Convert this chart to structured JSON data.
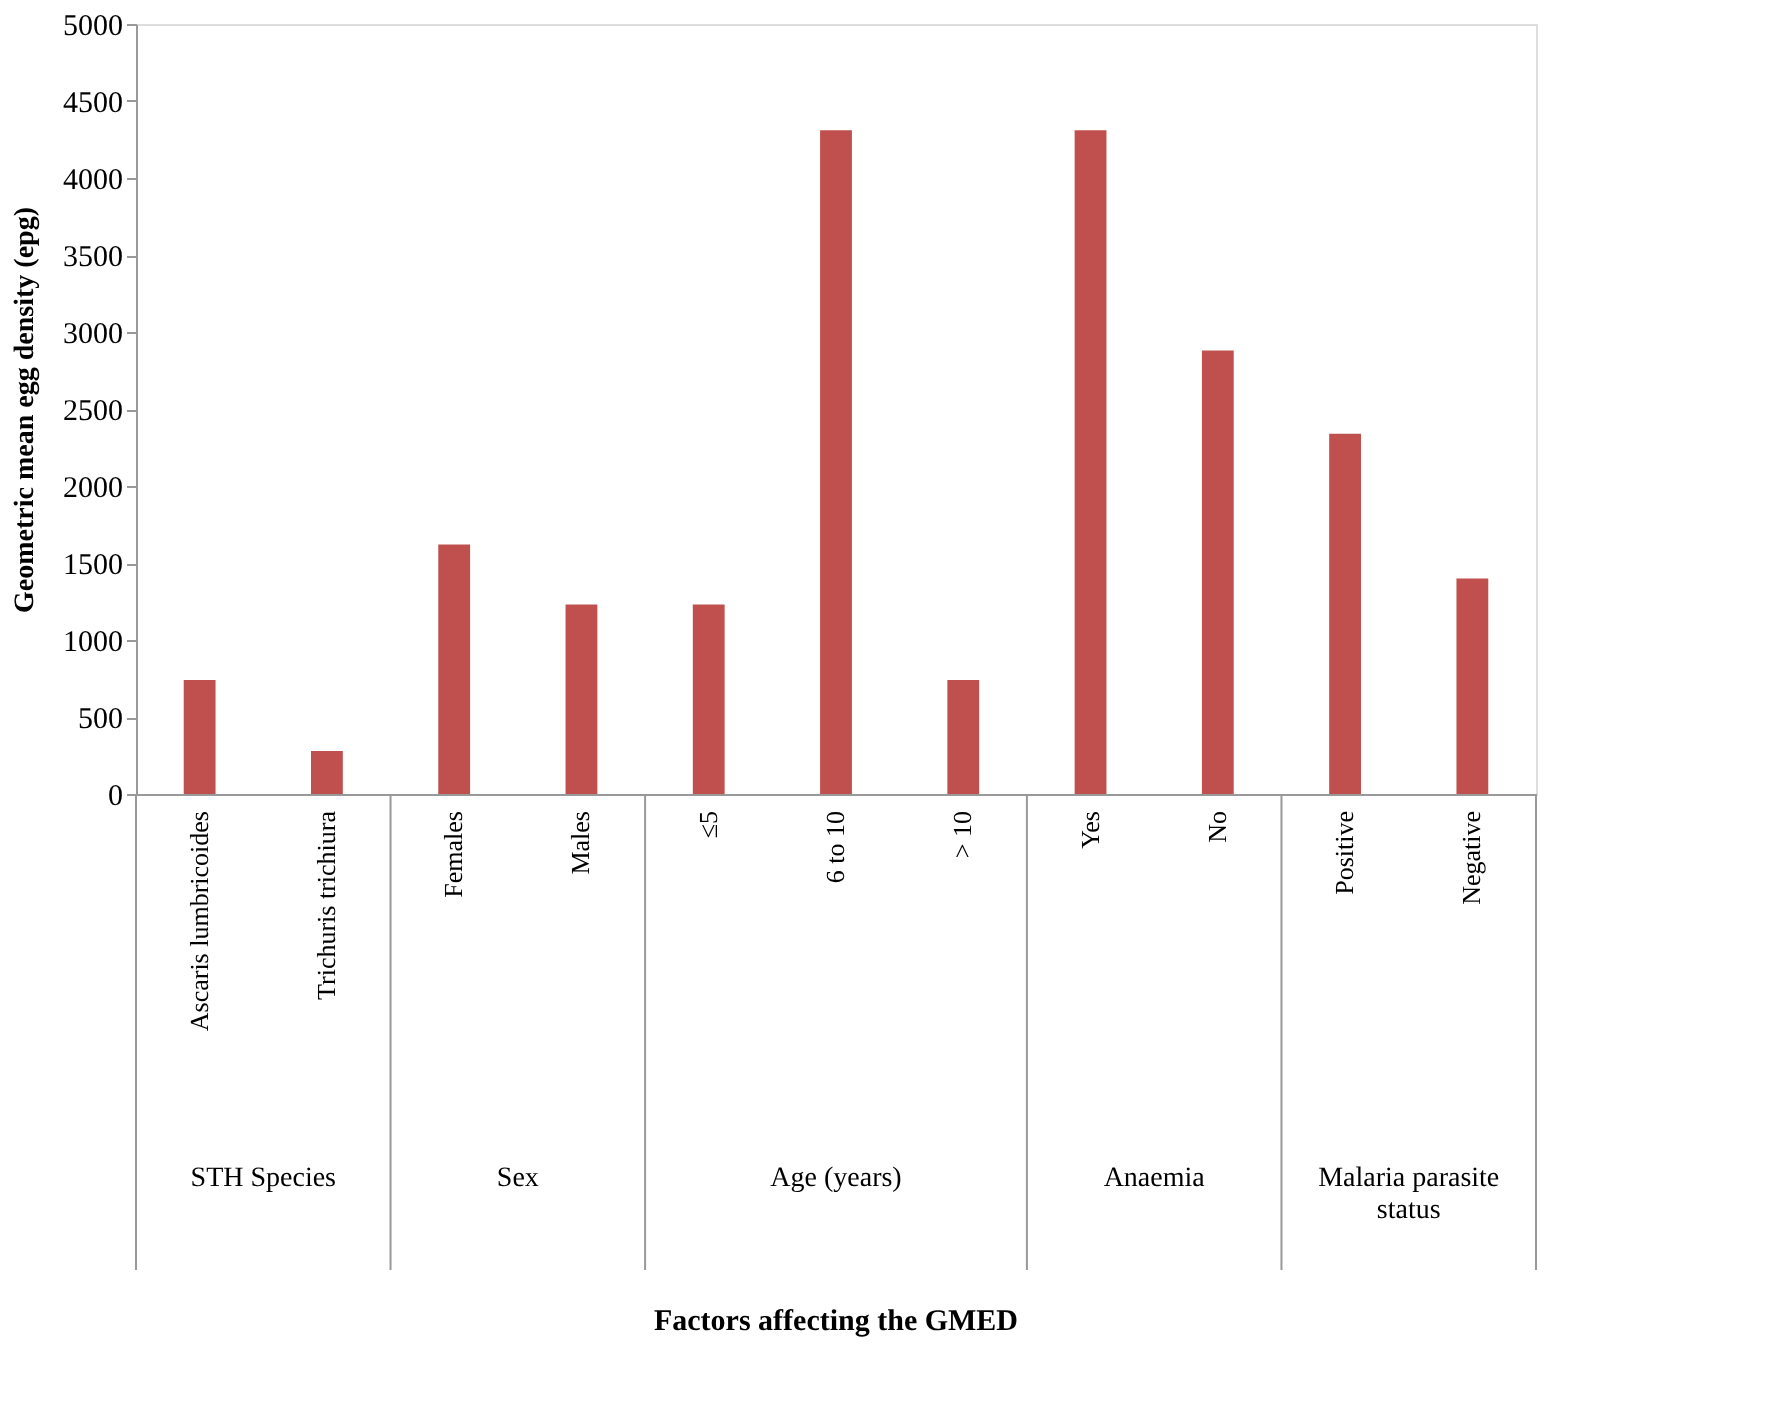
{
  "chart_data": {
    "type": "bar",
    "ylabel": "Geometric mean egg density (epg)",
    "categories": [
      "Ascaris lumbricoides",
      "Trichuris trichiura",
      "Females",
      "Males",
      "≤5",
      "6 to 10",
      "> 10",
      "Yes",
      "No",
      "Positive",
      "Negative"
    ],
    "values": [
      740,
      280,
      1620,
      1230,
      1230,
      4310,
      740,
      4310,
      2880,
      2340,
      1400
    ],
    "color": "#c0504d",
    "ylim": [
      0,
      5000
    ],
    "yticks": [
      0,
      500,
      1000,
      1500,
      2000,
      2500,
      3000,
      3500,
      4000,
      4500,
      5000
    ],
    "grid": false,
    "annotations": [
      "STH Species",
      "Sex",
      "Age (years)",
      "Anaemia",
      "Malaria parasite status",
      "Factors  affecting the GMED"
    ]
  }
}
